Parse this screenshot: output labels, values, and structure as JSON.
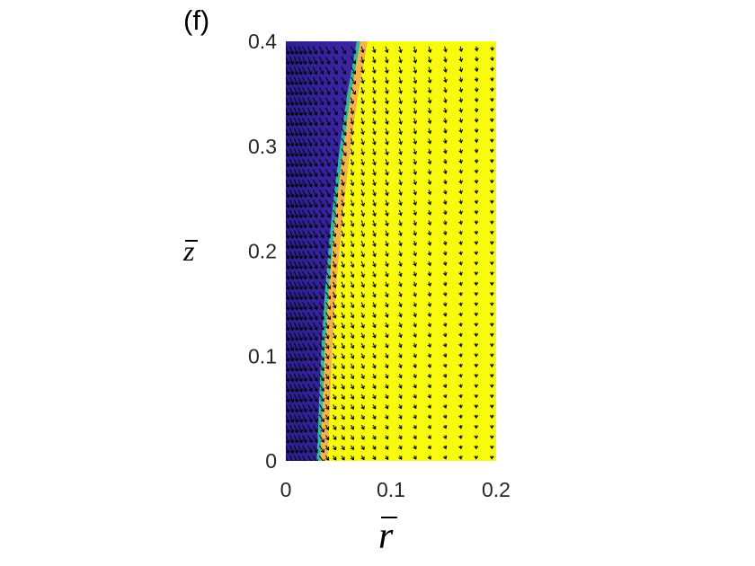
{
  "panel_label": "(f)",
  "colors": {
    "inner_region": "#3e26a8",
    "inner_region_dark": "#2d1f8f",
    "interface_cyan": "#33b7a0",
    "interface_orange": "#f5b24a",
    "outer_region": "#f9fb0e",
    "arrows": "#000000",
    "tick_text": "#262626"
  },
  "chart_data": {
    "type": "heatmap",
    "overlay": "quiver",
    "xlabel": "r̄",
    "ylabel": "z̄",
    "xlim": [
      0,
      0.2
    ],
    "ylim": [
      0,
      0.4
    ],
    "xticks": [
      0,
      0.1,
      0.2
    ],
    "xtick_labels": [
      "0",
      "0.1",
      "0.2"
    ],
    "yticks": [
      0,
      0.1,
      0.2,
      0.3,
      0.4
    ],
    "ytick_labels": [
      "0",
      "0.1",
      "0.2",
      "0.3",
      "0.4"
    ],
    "colorscale": "parula",
    "field_values": {
      "inner": 0.0,
      "outer": 1.0
    },
    "interface": {
      "z": [
        0,
        0.05,
        0.1,
        0.15,
        0.2,
        0.25,
        0.3,
        0.35,
        0.4
      ],
      "r": [
        0.032,
        0.034,
        0.036,
        0.039,
        0.043,
        0.048,
        0.054,
        0.061,
        0.07
      ]
    },
    "grid_on": false
  }
}
